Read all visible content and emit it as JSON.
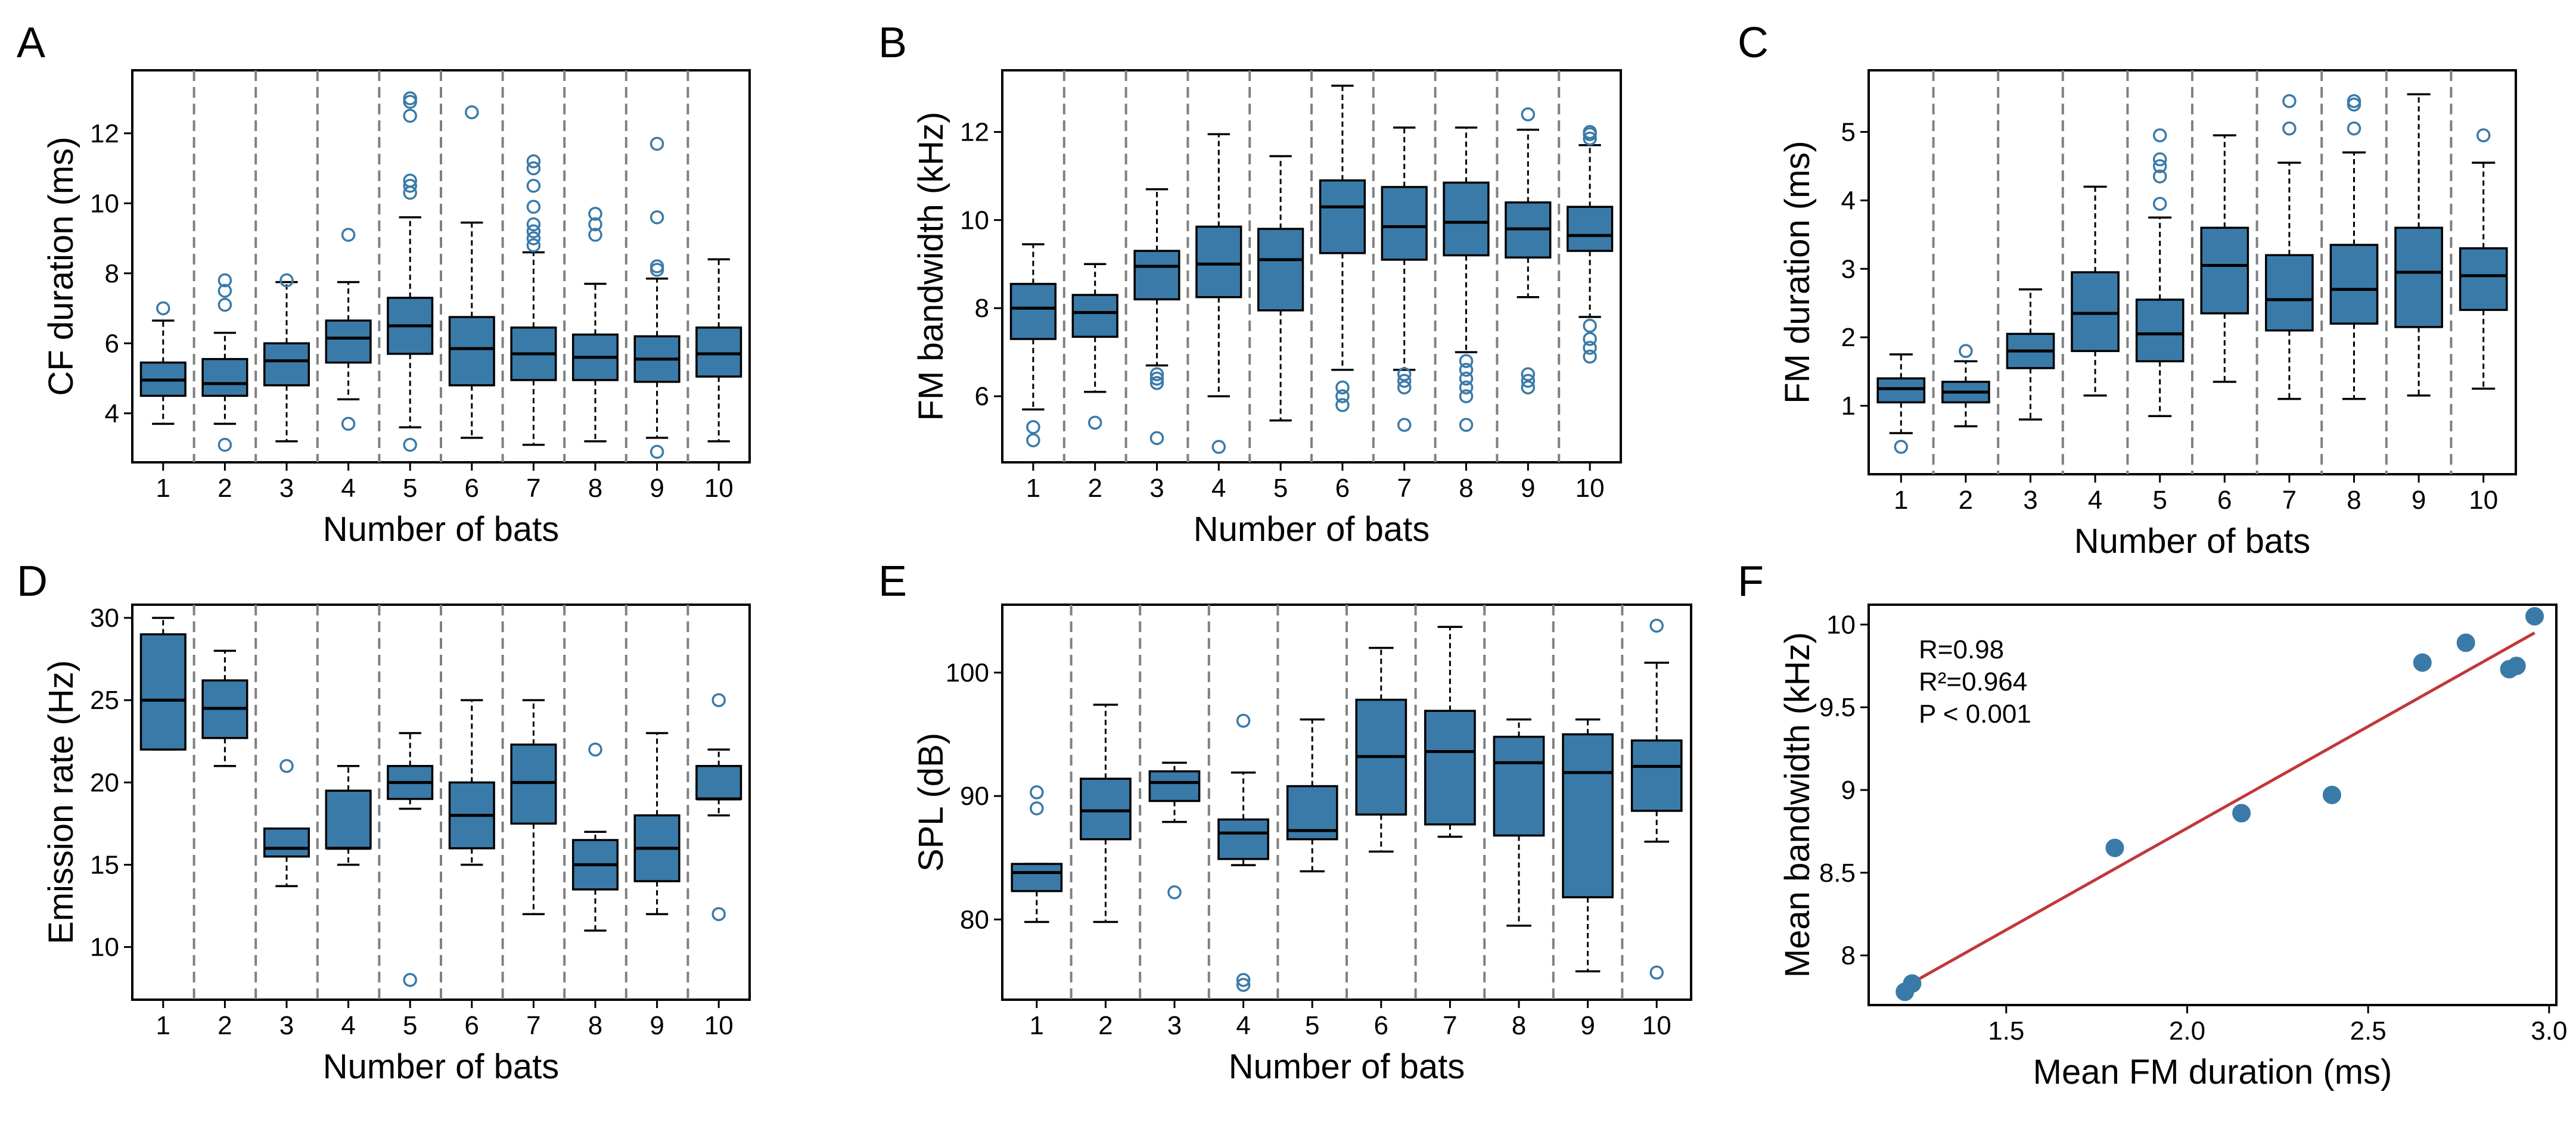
{
  "figure": {
    "style": {
      "box_fill": "#3a7aa8",
      "box_edge": "#000000",
      "flier_color": "#3a7aa8",
      "separator_color": "#808080",
      "fit_line_color": "#c0393b",
      "point_color": "#3a7aa8"
    }
  },
  "chart_data": [
    {
      "panel": "A",
      "type": "box",
      "xlabel": "Number of bats",
      "ylabel": "CF duration (ms)",
      "categories": [
        "1",
        "2",
        "3",
        "4",
        "5",
        "6",
        "7",
        "8",
        "9",
        "10"
      ],
      "ylim": [
        2.6,
        13.8
      ],
      "yticks": [
        4,
        6,
        8,
        10,
        12
      ],
      "boxes": [
        {
          "q1": 4.5,
          "median": 4.95,
          "q3": 5.45,
          "wlo": 3.7,
          "whi": 6.65,
          "fliers": [
            7.0
          ]
        },
        {
          "q1": 4.5,
          "median": 4.85,
          "q3": 5.55,
          "wlo": 3.7,
          "whi": 6.3,
          "fliers": [
            7.1,
            7.5,
            7.8,
            3.1
          ]
        },
        {
          "q1": 4.8,
          "median": 5.5,
          "q3": 6.0,
          "wlo": 3.2,
          "whi": 7.75,
          "fliers": [
            7.8
          ]
        },
        {
          "q1": 5.45,
          "median": 6.15,
          "q3": 6.65,
          "wlo": 4.4,
          "whi": 7.75,
          "fliers": [
            9.1,
            3.7
          ]
        },
        {
          "q1": 5.7,
          "median": 6.5,
          "q3": 7.3,
          "wlo": 3.6,
          "whi": 9.6,
          "fliers": [
            10.3,
            10.5,
            10.65,
            12.5,
            12.9,
            13.0,
            3.1
          ]
        },
        {
          "q1": 4.8,
          "median": 5.85,
          "q3": 6.75,
          "wlo": 3.3,
          "whi": 9.45,
          "fliers": [
            12.6
          ]
        },
        {
          "q1": 4.95,
          "median": 5.7,
          "q3": 6.45,
          "wlo": 3.1,
          "whi": 8.6,
          "fliers": [
            8.8,
            9.0,
            9.2,
            9.4,
            9.9,
            10.5,
            11.0,
            11.2
          ]
        },
        {
          "q1": 4.95,
          "median": 5.6,
          "q3": 6.25,
          "wlo": 3.2,
          "whi": 7.7,
          "fliers": [
            9.1,
            9.4,
            9.7
          ]
        },
        {
          "q1": 4.9,
          "median": 5.55,
          "q3": 6.2,
          "wlo": 3.3,
          "whi": 7.85,
          "fliers": [
            8.1,
            8.2,
            9.6,
            11.7,
            2.9
          ]
        },
        {
          "q1": 5.05,
          "median": 5.7,
          "q3": 6.45,
          "wlo": 3.2,
          "whi": 8.4,
          "fliers": []
        }
      ]
    },
    {
      "panel": "B",
      "type": "box",
      "xlabel": "Number of bats",
      "ylabel": "FM bandwidth (kHz)",
      "categories": [
        "1",
        "2",
        "3",
        "4",
        "5",
        "6",
        "7",
        "8",
        "9",
        "10"
      ],
      "ylim": [
        4.5,
        13.4
      ],
      "yticks": [
        6,
        8,
        10,
        12
      ],
      "boxes": [
        {
          "q1": 7.3,
          "median": 8.0,
          "q3": 8.55,
          "wlo": 5.7,
          "whi": 9.45,
          "fliers": [
            5.0,
            5.3
          ]
        },
        {
          "q1": 7.35,
          "median": 7.9,
          "q3": 8.3,
          "wlo": 6.1,
          "whi": 9.0,
          "fliers": [
            5.4
          ]
        },
        {
          "q1": 8.2,
          "median": 8.95,
          "q3": 9.3,
          "wlo": 6.7,
          "whi": 10.7,
          "fliers": [
            6.3,
            6.4,
            6.5,
            5.05
          ]
        },
        {
          "q1": 8.25,
          "median": 9.0,
          "q3": 9.85,
          "wlo": 6.0,
          "whi": 11.95,
          "fliers": [
            4.85
          ]
        },
        {
          "q1": 7.95,
          "median": 9.1,
          "q3": 9.8,
          "wlo": 5.45,
          "whi": 11.45,
          "fliers": []
        },
        {
          "q1": 9.25,
          "median": 10.3,
          "q3": 10.9,
          "wlo": 6.6,
          "whi": 13.05,
          "fliers": [
            5.8,
            6.0,
            6.2
          ]
        },
        {
          "q1": 9.1,
          "median": 9.85,
          "q3": 10.75,
          "wlo": 6.6,
          "whi": 12.1,
          "fliers": [
            5.35,
            6.2,
            6.35,
            6.5
          ]
        },
        {
          "q1": 9.2,
          "median": 9.95,
          "q3": 10.85,
          "wlo": 7.0,
          "whi": 12.1,
          "fliers": [
            5.35,
            6.0,
            6.2,
            6.4,
            6.6,
            6.8
          ]
        },
        {
          "q1": 9.15,
          "median": 9.8,
          "q3": 10.4,
          "wlo": 8.25,
          "whi": 12.05,
          "fliers": [
            12.4,
            6.2,
            6.35,
            6.5
          ]
        },
        {
          "q1": 9.3,
          "median": 9.65,
          "q3": 10.3,
          "wlo": 7.8,
          "whi": 11.7,
          "fliers": [
            11.85,
            12.0,
            11.95,
            7.6,
            7.3,
            7.1,
            6.9
          ]
        }
      ]
    },
    {
      "panel": "C",
      "type": "box",
      "xlabel": "Number of bats",
      "ylabel": "FM duration (ms)",
      "categories": [
        "1",
        "2",
        "3",
        "4",
        "5",
        "6",
        "7",
        "8",
        "9",
        "10"
      ],
      "ylim": [
        0.0,
        5.9
      ],
      "yticks": [
        1,
        2,
        3,
        4,
        5
      ],
      "boxes": [
        {
          "q1": 1.05,
          "median": 1.25,
          "q3": 1.4,
          "wlo": 0.6,
          "whi": 1.75,
          "fliers": [
            0.4
          ]
        },
        {
          "q1": 1.05,
          "median": 1.2,
          "q3": 1.35,
          "wlo": 0.7,
          "whi": 1.65,
          "fliers": [
            1.8
          ]
        },
        {
          "q1": 1.55,
          "median": 1.8,
          "q3": 2.05,
          "wlo": 0.8,
          "whi": 2.7,
          "fliers": []
        },
        {
          "q1": 1.8,
          "median": 2.35,
          "q3": 2.95,
          "wlo": 1.15,
          "whi": 4.2,
          "fliers": []
        },
        {
          "q1": 1.65,
          "median": 2.05,
          "q3": 2.55,
          "wlo": 0.85,
          "whi": 3.75,
          "fliers": [
            3.95,
            4.35,
            4.5,
            4.6,
            4.95
          ]
        },
        {
          "q1": 2.35,
          "median": 3.05,
          "q3": 3.6,
          "wlo": 1.35,
          "whi": 4.95,
          "fliers": []
        },
        {
          "q1": 2.1,
          "median": 2.55,
          "q3": 3.2,
          "wlo": 1.1,
          "whi": 4.55,
          "fliers": [
            5.05,
            5.45
          ]
        },
        {
          "q1": 2.2,
          "median": 2.7,
          "q3": 3.35,
          "wlo": 1.1,
          "whi": 4.7,
          "fliers": [
            5.05,
            5.4,
            5.45
          ]
        },
        {
          "q1": 2.15,
          "median": 2.95,
          "q3": 3.6,
          "wlo": 1.15,
          "whi": 5.55,
          "fliers": []
        },
        {
          "q1": 2.4,
          "median": 2.9,
          "q3": 3.3,
          "wlo": 1.25,
          "whi": 4.55,
          "fliers": [
            4.95
          ]
        }
      ]
    },
    {
      "panel": "D",
      "type": "box",
      "xlabel": "Number of bats",
      "ylabel": "Emission rate (Hz)",
      "categories": [
        "1",
        "2",
        "3",
        "4",
        "5",
        "6",
        "7",
        "8",
        "9",
        "10"
      ],
      "ylim": [
        6.8,
        30.8
      ],
      "yticks": [
        10,
        15,
        20,
        25,
        30
      ],
      "boxes": [
        {
          "q1": 22.0,
          "median": 25.0,
          "q3": 29.0,
          "wlo": 22.0,
          "whi": 30.0,
          "fliers": []
        },
        {
          "q1": 22.7,
          "median": 24.5,
          "q3": 26.2,
          "wlo": 21.0,
          "whi": 28.0,
          "fliers": []
        },
        {
          "q1": 15.5,
          "median": 16.0,
          "q3": 17.2,
          "wlo": 13.7,
          "whi": 17.2,
          "fliers": [
            21.0
          ]
        },
        {
          "q1": 16.0,
          "median": 16.0,
          "q3": 19.5,
          "wlo": 15.0,
          "whi": 21.0,
          "fliers": []
        },
        {
          "q1": 19.0,
          "median": 20.0,
          "q3": 21.0,
          "wlo": 18.4,
          "whi": 23.0,
          "fliers": [
            8.0
          ]
        },
        {
          "q1": 16.0,
          "median": 18.0,
          "q3": 20.0,
          "wlo": 15.0,
          "whi": 25.0,
          "fliers": []
        },
        {
          "q1": 17.5,
          "median": 20.0,
          "q3": 22.3,
          "wlo": 12.0,
          "whi": 25.0,
          "fliers": []
        },
        {
          "q1": 13.5,
          "median": 15.0,
          "q3": 16.5,
          "wlo": 11.0,
          "whi": 17.0,
          "fliers": [
            22.0
          ]
        },
        {
          "q1": 14.0,
          "median": 16.0,
          "q3": 18.0,
          "wlo": 12.0,
          "whi": 23.0,
          "fliers": []
        },
        {
          "q1": 19.0,
          "median": 19.0,
          "q3": 21.0,
          "wlo": 18.0,
          "whi": 22.0,
          "fliers": [
            25.0,
            12.0
          ]
        }
      ]
    },
    {
      "panel": "E",
      "type": "box",
      "xlabel": "Number of bats",
      "ylabel": "SPL (dB)",
      "categories": [
        "1",
        "2",
        "3",
        "4",
        "5",
        "6",
        "7",
        "8",
        "9",
        "10"
      ],
      "ylim": [
        73.5,
        105.5
      ],
      "yticks": [
        80,
        90,
        100
      ],
      "boxes": [
        {
          "q1": 82.3,
          "median": 83.8,
          "q3": 84.5,
          "wlo": 79.8,
          "whi": 84.5,
          "fliers": [
            89.0,
            90.3
          ]
        },
        {
          "q1": 86.5,
          "median": 88.8,
          "q3": 91.4,
          "wlo": 79.8,
          "whi": 97.4,
          "fliers": []
        },
        {
          "q1": 89.6,
          "median": 91.1,
          "q3": 92.0,
          "wlo": 87.9,
          "whi": 92.7,
          "fliers": [
            82.2
          ]
        },
        {
          "q1": 84.9,
          "median": 87.0,
          "q3": 88.1,
          "wlo": 84.4,
          "whi": 91.9,
          "fliers": [
            96.1,
            75.1,
            74.7
          ]
        },
        {
          "q1": 86.5,
          "median": 87.2,
          "q3": 90.8,
          "wlo": 83.9,
          "whi": 96.2,
          "fliers": []
        },
        {
          "q1": 88.5,
          "median": 93.2,
          "q3": 97.8,
          "wlo": 85.5,
          "whi": 102.0,
          "fliers": []
        },
        {
          "q1": 87.7,
          "median": 93.6,
          "q3": 96.9,
          "wlo": 86.7,
          "whi": 103.7,
          "fliers": []
        },
        {
          "q1": 86.8,
          "median": 92.7,
          "q3": 94.8,
          "wlo": 79.5,
          "whi": 96.2,
          "fliers": []
        },
        {
          "q1": 81.8,
          "median": 91.9,
          "q3": 95.0,
          "wlo": 75.8,
          "whi": 96.2,
          "fliers": []
        },
        {
          "q1": 88.8,
          "median": 92.4,
          "q3": 94.5,
          "wlo": 86.3,
          "whi": 100.8,
          "fliers": [
            103.8,
            75.7
          ]
        }
      ]
    },
    {
      "panel": "F",
      "type": "scatter",
      "xlabel": "Mean FM duration (ms)",
      "ylabel": "Mean bandwidth (kHz)",
      "xlim": [
        1.12,
        3.02
      ],
      "ylim": [
        7.7,
        10.12
      ],
      "xticks": [
        1.5,
        2.0,
        2.5,
        3.0
      ],
      "yticks": [
        8.0,
        8.5,
        9.0,
        9.5,
        10.0
      ],
      "points": [
        {
          "x": 1.22,
          "y": 7.78
        },
        {
          "x": 1.24,
          "y": 7.83
        },
        {
          "x": 1.8,
          "y": 8.65
        },
        {
          "x": 2.15,
          "y": 8.86
        },
        {
          "x": 2.4,
          "y": 8.97
        },
        {
          "x": 2.65,
          "y": 9.77
        },
        {
          "x": 2.77,
          "y": 9.89
        },
        {
          "x": 2.89,
          "y": 9.73
        },
        {
          "x": 2.91,
          "y": 9.75
        },
        {
          "x": 2.96,
          "y": 10.05
        }
      ],
      "fit_line": {
        "x0": 1.22,
        "y0": 7.81,
        "x1": 2.96,
        "y1": 9.95
      },
      "annotations": [
        "R=0.98",
        "R²=0.964",
        "P < 0.001"
      ]
    }
  ]
}
